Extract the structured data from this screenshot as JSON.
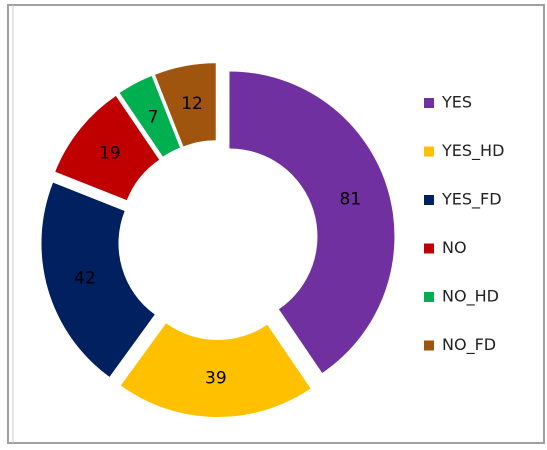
{
  "chart_data": {
    "type": "donut",
    "categories": [
      "YES",
      "YES_HD",
      "YES_FD",
      "NO",
      "NO_HD",
      "NO_FD"
    ],
    "values": [
      81,
      39,
      42,
      19,
      7,
      12
    ],
    "colors": [
      "#7030a0",
      "#ffc000",
      "#002060",
      "#c00000",
      "#00b050",
      "#a0550f"
    ],
    "exploded": true,
    "legend": "right"
  }
}
